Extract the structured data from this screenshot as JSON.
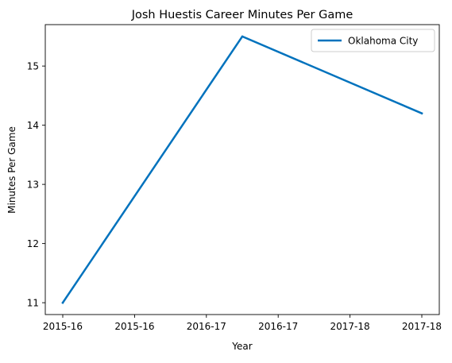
{
  "chart_data": {
    "type": "line",
    "title": "Josh Huestis Career Minutes Per Game",
    "xlabel": "Year",
    "ylabel": "Minutes Per Game",
    "x": [
      0,
      1,
      2
    ],
    "xlim": [
      0,
      2
    ],
    "x_tick_positions": [
      0,
      0.4,
      0.8,
      1.2,
      1.6,
      2.0
    ],
    "x_tick_labels": [
      "2015-16",
      "2015-16",
      "2016-17",
      "2016-17",
      "2017-18",
      "2017-18"
    ],
    "ylim": [
      10.8,
      15.7
    ],
    "y_ticks": [
      11,
      12,
      13,
      14,
      15
    ],
    "series": [
      {
        "name": "Oklahoma City",
        "color": "#0072bd",
        "values": [
          11.0,
          15.5,
          14.2
        ]
      }
    ],
    "legend": "top-right",
    "grid": false
  }
}
